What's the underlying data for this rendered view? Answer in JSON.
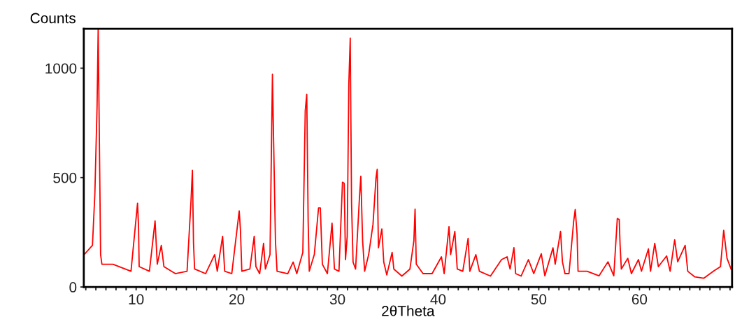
{
  "chart_data": {
    "type": "line",
    "xlabel": "2θTheta",
    "ylabel": "Counts",
    "xlim": [
      4.8,
      69.2
    ],
    "ylim": [
      0,
      1180
    ],
    "yticks": [
      0,
      500,
      1000
    ],
    "xticks": [
      {
        "value": 5,
        "label": null
      },
      {
        "value": 6,
        "label": null
      },
      {
        "value": 7,
        "label": null
      },
      {
        "value": 8,
        "label": null
      },
      {
        "value": 9,
        "label": null
      },
      10,
      {
        "value": 11,
        "label": null
      },
      {
        "value": 12,
        "label": null
      },
      {
        "value": 13,
        "label": null
      },
      {
        "value": 14,
        "label": null
      },
      {
        "value": 15,
        "label": null
      },
      {
        "value": 16,
        "label": null
      },
      {
        "value": 17,
        "label": null
      },
      {
        "value": 18,
        "label": null
      },
      {
        "value": 19,
        "label": null
      },
      20,
      {
        "value": 21,
        "label": null
      },
      {
        "value": 22,
        "label": null
      },
      {
        "value": 23,
        "label": null
      },
      {
        "value": 24,
        "label": null
      },
      {
        "value": 25,
        "label": null
      },
      {
        "value": 26,
        "label": null
      },
      {
        "value": 27,
        "label": null
      },
      {
        "value": 28,
        "label": null
      },
      {
        "value": 29,
        "label": null
      },
      30,
      {
        "value": 31,
        "label": null
      },
      {
        "value": 32,
        "label": null
      },
      {
        "value": 33,
        "label": null
      },
      {
        "value": 34,
        "label": null
      },
      {
        "value": 35,
        "label": null
      },
      {
        "value": 36,
        "label": null
      },
      {
        "value": 37,
        "label": null
      },
      {
        "value": 38,
        "label": null
      },
      {
        "value": 39,
        "label": null
      },
      40,
      {
        "value": 41,
        "label": null
      },
      {
        "value": 42,
        "label": null
      },
      {
        "value": 43,
        "label": null
      },
      {
        "value": 44,
        "label": null
      },
      {
        "value": 45,
        "label": null
      },
      {
        "value": 46,
        "label": null
      },
      {
        "value": 47,
        "label": null
      },
      {
        "value": 48,
        "label": null
      },
      {
        "value": 49,
        "label": null
      },
      50,
      {
        "value": 51,
        "label": null
      },
      {
        "value": 52,
        "label": null
      },
      {
        "value": 53,
        "label": null
      },
      {
        "value": 54,
        "label": null
      },
      {
        "value": 55,
        "label": null
      },
      {
        "value": 56,
        "label": null
      },
      {
        "value": 57,
        "label": null
      },
      {
        "value": 58,
        "label": null
      },
      {
        "value": 59,
        "label": null
      },
      60,
      {
        "value": 61,
        "label": null
      },
      {
        "value": 62,
        "label": null
      },
      {
        "value": 63,
        "label": null
      },
      {
        "value": 64,
        "label": null
      },
      {
        "value": 65,
        "label": null
      },
      {
        "value": 66,
        "label": null
      },
      {
        "value": 67,
        "label": null
      },
      {
        "value": 68,
        "label": null
      },
      {
        "value": 69,
        "label": null
      }
    ],
    "grid": false,
    "legend": false,
    "marker": "none",
    "line_style": "solid",
    "series": [
      {
        "color": "#ff0000",
        "x": [
          4.84,
          5.66,
          5.9,
          6.12,
          6.23,
          6.4,
          6.47,
          6.6,
          7.7,
          9.49,
          10.14,
          10.24,
          10.3,
          11.32,
          11.88,
          12.1,
          12.5,
          12.76,
          13.9,
          15.06,
          15.45,
          15.59,
          15.7,
          15.81,
          16.9,
          17.8,
          18.06,
          18.59,
          18.8,
          19.5,
          20.24,
          20.36,
          20.5,
          21.3,
          21.73,
          21.9,
          22.27,
          22.66,
          22.84,
          23.3,
          23.54,
          23.66,
          23.84,
          24.0,
          25.06,
          25.6,
          25.96,
          26.56,
          26.8,
          26.95,
          27.09,
          27.2,
          27.7,
          28.12,
          28.3,
          28.5,
          29.0,
          29.46,
          29.7,
          30.15,
          30.5,
          30.67,
          30.8,
          30.97,
          31.13,
          31.27,
          31.4,
          31.55,
          31.8,
          32.18,
          32.32,
          32.5,
          32.7,
          33.1,
          33.53,
          33.83,
          33.95,
          34.07,
          34.41,
          34.6,
          34.9,
          35.43,
          35.6,
          36.4,
          37.2,
          37.59,
          37.71,
          37.83,
          38.5,
          39.4,
          40.33,
          40.6,
          41.08,
          41.24,
          41.66,
          41.9,
          42.45,
          42.98,
          43.15,
          43.75,
          44.1,
          45.2,
          46.3,
          46.85,
          47.15,
          47.53,
          47.7,
          48.25,
          48.97,
          49.5,
          50.25,
          50.6,
          51.41,
          51.63,
          52.16,
          52.35,
          52.6,
          53.0,
          53.46,
          53.62,
          53.8,
          53.9,
          54.8,
          55.98,
          56.87,
          57.45,
          57.8,
          57.99,
          58.08,
          58.2,
          58.84,
          59.2,
          59.9,
          60.2,
          60.89,
          61.1,
          61.52,
          61.88,
          62.7,
          63.05,
          63.5,
          63.8,
          64.54,
          64.8,
          65.5,
          66.4,
          67.35,
          68.05,
          68.37,
          68.7,
          69.1
        ],
        "values": [
          148,
          190,
          425,
          827,
          1180,
          447,
          148,
          104,
          104,
          72,
          383,
          275,
          93,
          72,
          302,
          104,
          190,
          93,
          61,
          72,
          393,
          533,
          200,
          82,
          61,
          148,
          72,
          232,
          72,
          61,
          348,
          262,
          72,
          82,
          232,
          93,
          61,
          200,
          82,
          148,
          972,
          662,
          210,
          72,
          61,
          114,
          61,
          158,
          806,
          881,
          297,
          72,
          148,
          361,
          361,
          104,
          61,
          292,
          82,
          72,
          479,
          474,
          125,
          232,
          929,
          1138,
          383,
          114,
          82,
          404,
          506,
          210,
          72,
          148,
          286,
          500,
          538,
          179,
          265,
          114,
          55,
          158,
          82,
          50,
          82,
          211,
          356,
          104,
          61,
          61,
          138,
          61,
          276,
          148,
          254,
          82,
          72,
          222,
          72,
          148,
          72,
          50,
          125,
          138,
          82,
          180,
          61,
          50,
          125,
          61,
          152,
          51,
          179,
          104,
          254,
          115,
          61,
          61,
          297,
          354,
          244,
          72,
          72,
          51,
          115,
          51,
          313,
          308,
          190,
          82,
          131,
          61,
          125,
          72,
          174,
          72,
          200,
          93,
          142,
          72,
          216,
          115,
          190,
          72,
          46,
          40,
          72,
          93,
          259,
          131,
          82
        ]
      }
    ]
  }
}
